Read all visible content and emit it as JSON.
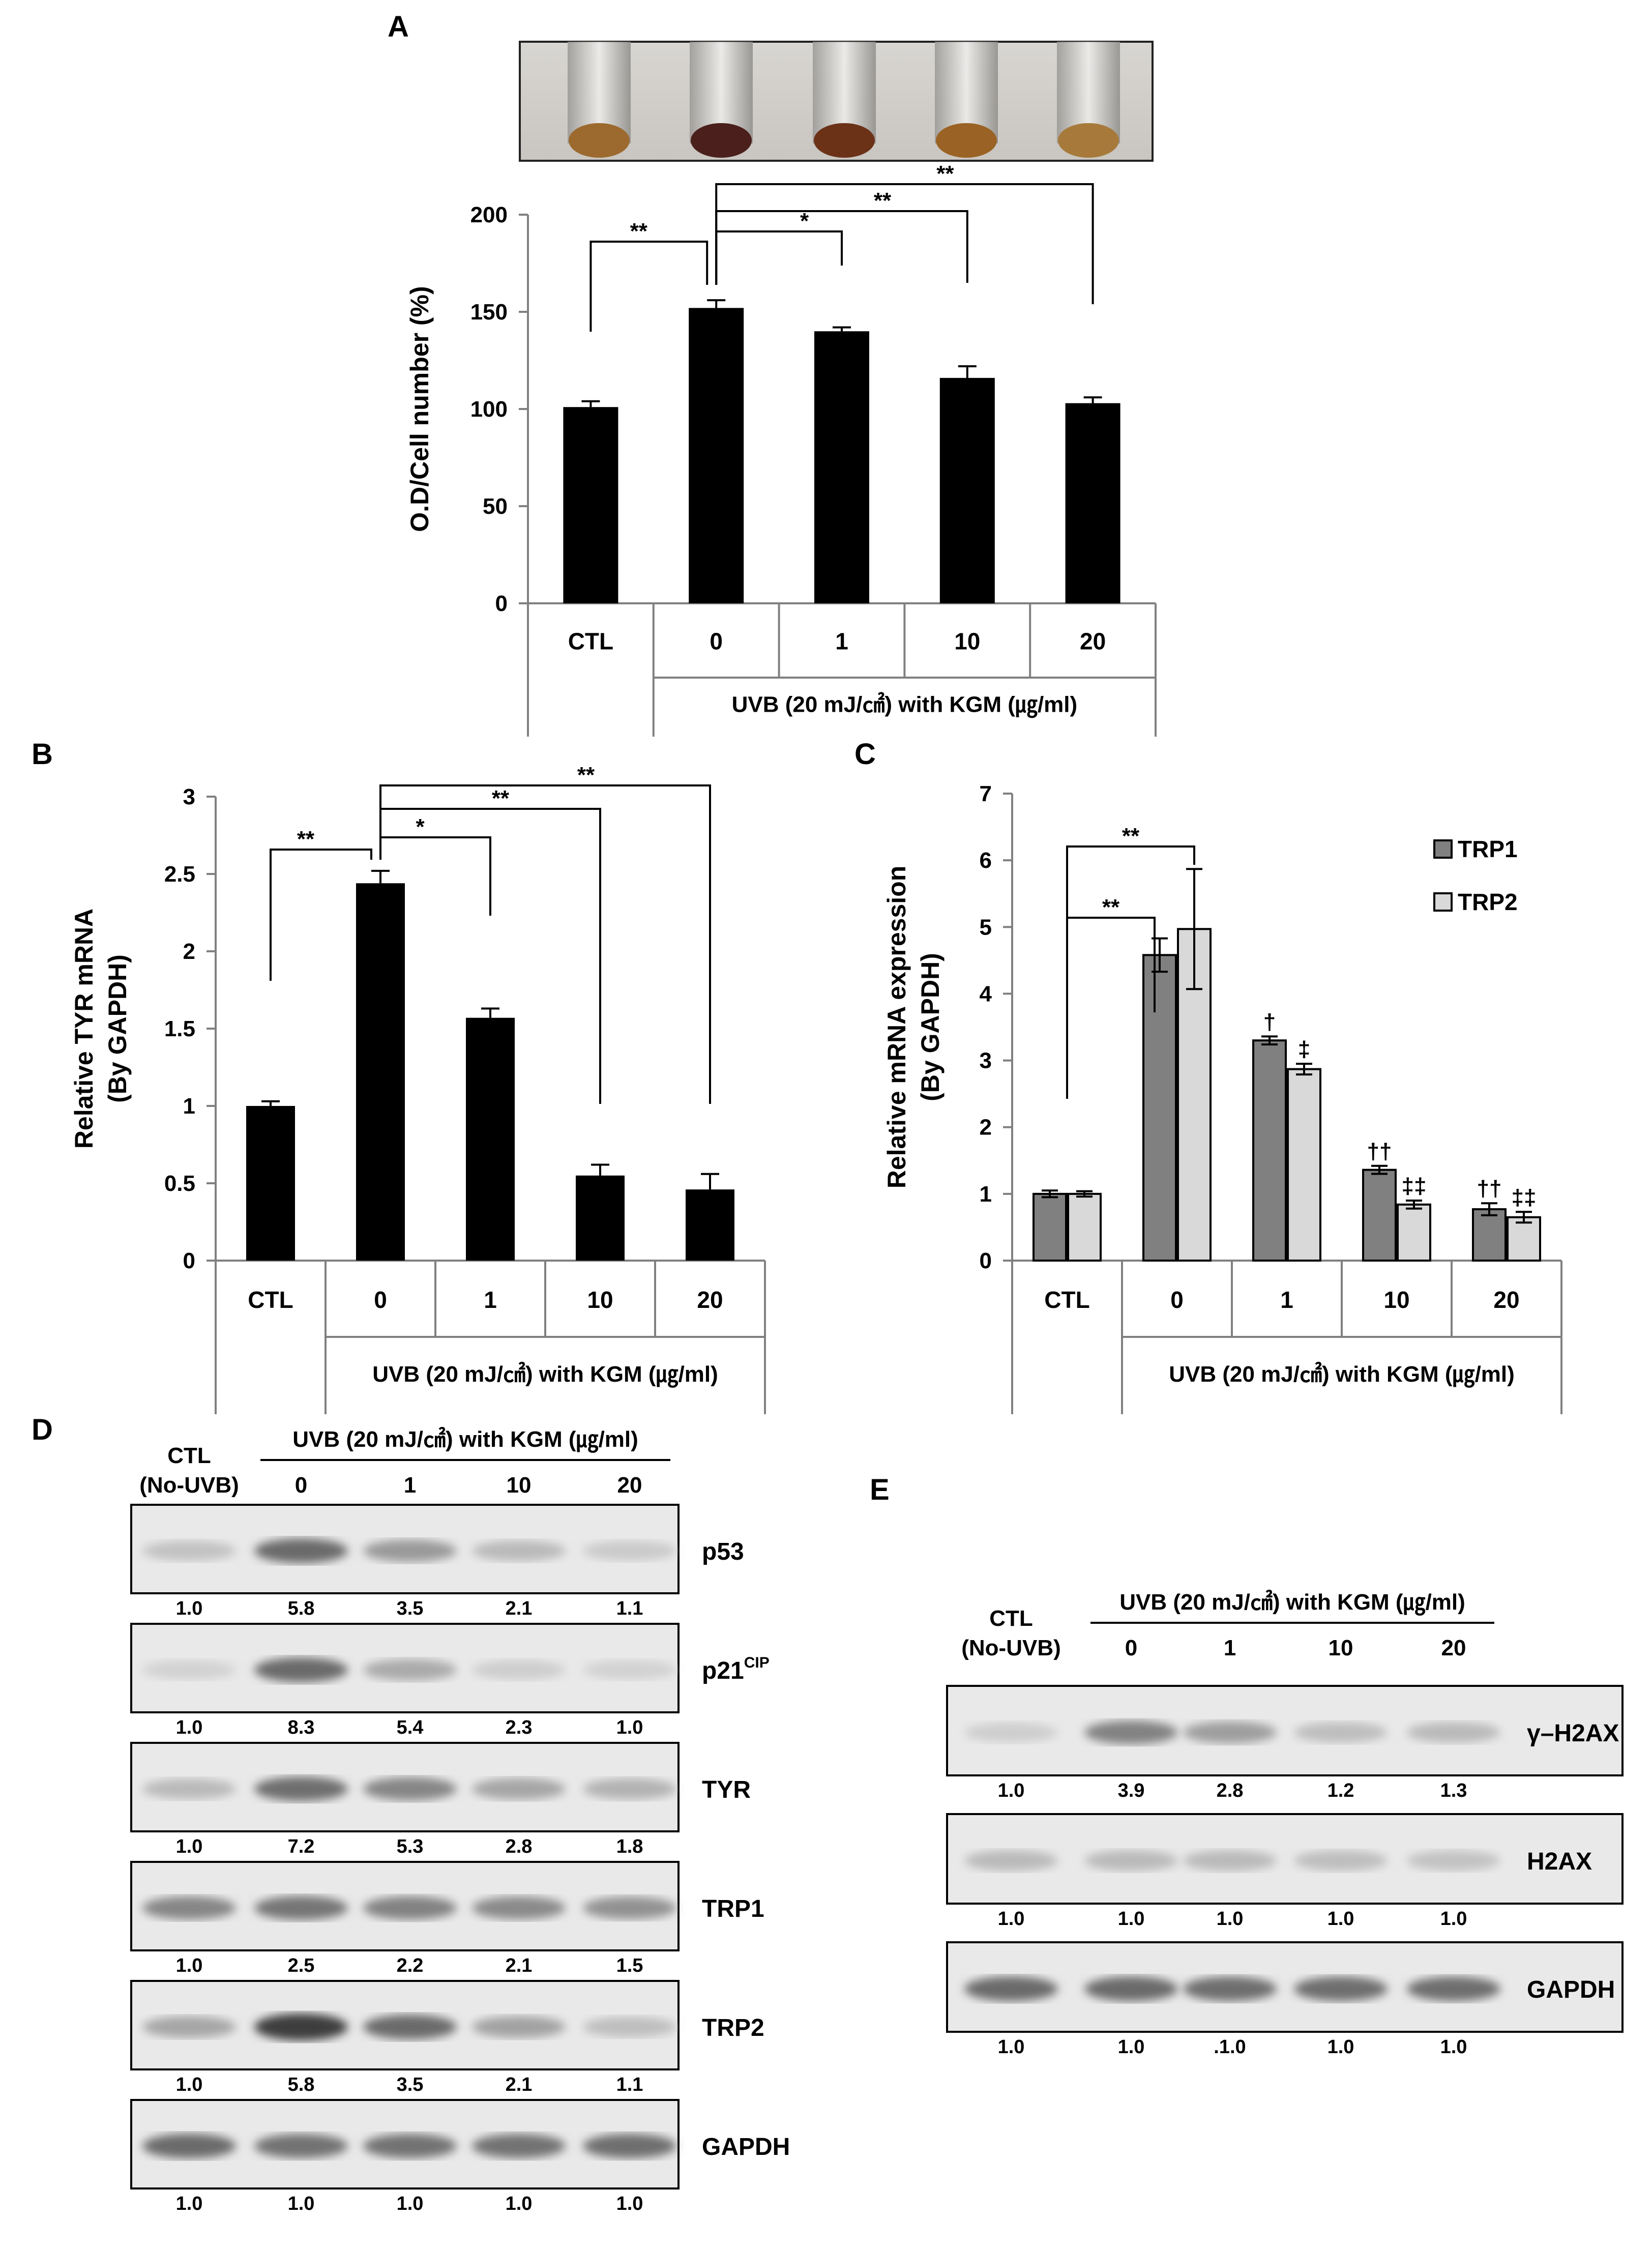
{
  "panels": {
    "A": "A",
    "B": "B",
    "C": "C",
    "D": "D",
    "E": "E"
  },
  "colors": {
    "bar_black": "#000000",
    "trp1": "#808080",
    "trp2": "#d9d9d9",
    "axis": "#808080"
  },
  "chart_data": [
    {
      "id": "A",
      "type": "bar",
      "categories": [
        "CTL",
        "0",
        "1",
        "10",
        "20"
      ],
      "values": [
        101,
        152,
        140,
        116,
        103
      ],
      "errors": [
        3,
        4,
        2,
        6,
        3
      ],
      "yticks": [
        "0",
        "50",
        "100",
        "150",
        "200"
      ],
      "ylim": [
        0,
        200
      ],
      "ylabel": "O.D/Cell number (%)",
      "group_label": "UVB (20 mJ/㎠) with KGM (㎍/ml)",
      "significance": [
        "**",
        "*",
        "**",
        "**"
      ]
    },
    {
      "id": "B",
      "type": "bar",
      "categories": [
        "CTL",
        "0",
        "1",
        "10",
        "20"
      ],
      "values": [
        1.0,
        2.44,
        1.57,
        0.55,
        0.46
      ],
      "errors": [
        0.03,
        0.08,
        0.06,
        0.07,
        0.1
      ],
      "yticks": [
        "0",
        "0.5",
        "1",
        "1.5",
        "2",
        "2.5",
        "3"
      ],
      "ylim": [
        0,
        3
      ],
      "ylabel_line1": "Relative TYR mRNA",
      "ylabel_line2": "(By GAPDH)",
      "group_label": "UVB (20 mJ/㎠) with KGM (㎍/ml)",
      "significance": [
        "**",
        "*",
        "**",
        "**"
      ]
    },
    {
      "id": "C",
      "type": "bar",
      "categories": [
        "CTL",
        "0",
        "1",
        "10",
        "20"
      ],
      "series": [
        {
          "name": "TRP1",
          "values": [
            1.0,
            4.58,
            3.3,
            1.36,
            0.77
          ],
          "errors": [
            0.05,
            0.25,
            0.06,
            0.06,
            0.09
          ],
          "marks": [
            "",
            "",
            "†",
            "††",
            "††"
          ]
        },
        {
          "name": "TRP2",
          "values": [
            1.0,
            4.97,
            2.87,
            0.84,
            0.65
          ],
          "errors": [
            0.04,
            0.9,
            0.08,
            0.06,
            0.08
          ],
          "marks": [
            "",
            "",
            "‡",
            "‡‡",
            "‡‡"
          ]
        }
      ],
      "yticks": [
        "0",
        "1",
        "2",
        "3",
        "4",
        "5",
        "6",
        "7"
      ],
      "ylim": [
        0,
        7
      ],
      "ylabel_line1": "Relative mRNA expression",
      "ylabel_line2": "(By GAPDH)",
      "group_label": "UVB (20 mJ/㎠) with KGM (㎍/ml)",
      "significance": [
        "**",
        "**"
      ],
      "legend_placement": "top-right"
    }
  ],
  "blot_D": {
    "ctl_line1": "CTL",
    "ctl_line2": "(No-UVB)",
    "treatment_header": "UVB (20 mJ/㎠) with KGM (㎍/ml)",
    "lanes": [
      "0",
      "1",
      "10",
      "20"
    ],
    "rows": [
      {
        "label": "p53",
        "label_sup": "",
        "quant": [
          "1.0",
          "5.8",
          "3.5",
          "2.1",
          "1.1"
        ],
        "intensity": [
          0.18,
          0.62,
          0.38,
          0.22,
          0.14
        ]
      },
      {
        "label": "p21",
        "label_sup": "CIP",
        "quant": [
          "1.0",
          "8.3",
          "5.4",
          "2.3",
          "1.0"
        ],
        "intensity": [
          0.1,
          0.62,
          0.3,
          0.12,
          0.1
        ]
      },
      {
        "label": "TYR",
        "label_sup": "",
        "quant": [
          "1.0",
          "7.2",
          "5.3",
          "2.8",
          "1.8"
        ],
        "intensity": [
          0.22,
          0.6,
          0.48,
          0.32,
          0.26
        ]
      },
      {
        "label": "TRP1",
        "label_sup": "",
        "quant": [
          "1.0",
          "2.5",
          "2.2",
          "2.1",
          "1.5"
        ],
        "intensity": [
          0.48,
          0.56,
          0.5,
          0.46,
          0.42
        ]
      },
      {
        "label": "TRP2",
        "label_sup": "",
        "quant": [
          "1.0",
          "5.8",
          "3.5",
          "2.1",
          "1.1"
        ],
        "intensity": [
          0.32,
          0.85,
          0.62,
          0.34,
          0.2
        ]
      },
      {
        "label": "GAPDH",
        "label_sup": "",
        "quant": [
          "1.0",
          "1.0",
          "1.0",
          "1.0",
          "1.0"
        ],
        "intensity": [
          0.62,
          0.58,
          0.58,
          0.58,
          0.6
        ]
      }
    ]
  },
  "blot_E": {
    "ctl_line1": "CTL",
    "ctl_line2": "(No-UVB)",
    "treatment_header": "UVB (20 mJ/㎠) with KGM (㎍/ml)",
    "lanes": [
      "0",
      "1",
      "10",
      "20"
    ],
    "rows": [
      {
        "label": "γ–H2AX",
        "quant": [
          "1.0",
          "3.9",
          "2.8",
          "1.2",
          "1.3"
        ],
        "intensity": [
          0.12,
          0.5,
          0.36,
          0.2,
          0.22
        ]
      },
      {
        "label": "H2AX",
        "quant": [
          "1.0",
          "1.0",
          "1.0",
          "1.0",
          "1.0"
        ],
        "intensity": [
          0.22,
          0.22,
          0.22,
          0.2,
          0.18
        ]
      },
      {
        "label": "GAPDH",
        "quant": [
          "1.0",
          "1.0",
          ".1.0",
          "1.0",
          "1.0"
        ],
        "intensity": [
          0.62,
          0.62,
          0.6,
          0.6,
          0.6
        ]
      }
    ]
  }
}
